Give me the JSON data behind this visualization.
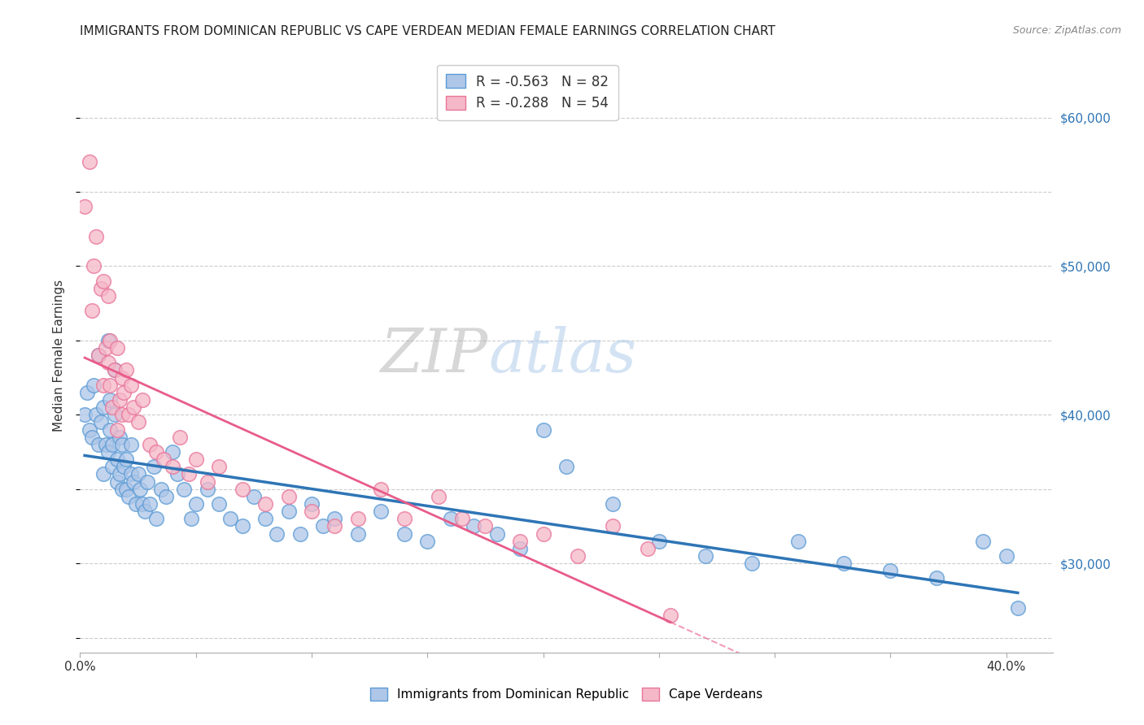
{
  "title": "IMMIGRANTS FROM DOMINICAN REPUBLIC VS CAPE VERDEAN MEDIAN FEMALE EARNINGS CORRELATION CHART",
  "source": "Source: ZipAtlas.com",
  "ylabel": "Median Female Earnings",
  "xlim": [
    0.0,
    0.42
  ],
  "ylim": [
    24000,
    64000
  ],
  "xticks": [
    0.0,
    0.05,
    0.1,
    0.15,
    0.2,
    0.25,
    0.3,
    0.35,
    0.4
  ],
  "ytick_labels_right": [
    "$30,000",
    "$40,000",
    "$50,000",
    "$60,000"
  ],
  "ytick_values_right": [
    30000,
    40000,
    50000,
    60000
  ],
  "blue_color": "#aec6e8",
  "blue_edge_color": "#5b9bd5",
  "blue_line_color": "#2e75b6",
  "pink_color": "#f5b8c8",
  "pink_edge_color": "#e8759a",
  "pink_line_color": "#e85c8a",
  "background_color": "#ffffff",
  "grid_color": "#cccccc",
  "blue_scatter_x": [
    0.002,
    0.003,
    0.004,
    0.005,
    0.006,
    0.007,
    0.008,
    0.008,
    0.009,
    0.01,
    0.01,
    0.011,
    0.012,
    0.012,
    0.013,
    0.013,
    0.014,
    0.014,
    0.015,
    0.015,
    0.016,
    0.016,
    0.017,
    0.017,
    0.018,
    0.018,
    0.019,
    0.02,
    0.02,
    0.021,
    0.022,
    0.022,
    0.023,
    0.024,
    0.025,
    0.026,
    0.027,
    0.028,
    0.029,
    0.03,
    0.032,
    0.033,
    0.035,
    0.037,
    0.04,
    0.042,
    0.045,
    0.048,
    0.05,
    0.055,
    0.06,
    0.065,
    0.07,
    0.075,
    0.08,
    0.085,
    0.09,
    0.095,
    0.1,
    0.105,
    0.11,
    0.12,
    0.13,
    0.14,
    0.15,
    0.16,
    0.17,
    0.18,
    0.19,
    0.2,
    0.21,
    0.23,
    0.25,
    0.27,
    0.29,
    0.31,
    0.33,
    0.35,
    0.37,
    0.39,
    0.4,
    0.405
  ],
  "blue_scatter_y": [
    40000,
    41500,
    39000,
    38500,
    42000,
    40000,
    38000,
    44000,
    39500,
    40500,
    36000,
    38000,
    37500,
    45000,
    41000,
    39000,
    38000,
    36500,
    43000,
    40000,
    37000,
    35500,
    38500,
    36000,
    35000,
    38000,
    36500,
    37000,
    35000,
    34500,
    38000,
    36000,
    35500,
    34000,
    36000,
    35000,
    34000,
    33500,
    35500,
    34000,
    36500,
    33000,
    35000,
    34500,
    37500,
    36000,
    35000,
    33000,
    34000,
    35000,
    34000,
    33000,
    32500,
    34500,
    33000,
    32000,
    33500,
    32000,
    34000,
    32500,
    33000,
    32000,
    33500,
    32000,
    31500,
    33000,
    32500,
    32000,
    31000,
    39000,
    36500,
    34000,
    31500,
    30500,
    30000,
    31500,
    30000,
    29500,
    29000,
    31500,
    30500,
    27000
  ],
  "pink_scatter_x": [
    0.002,
    0.004,
    0.005,
    0.006,
    0.007,
    0.008,
    0.009,
    0.01,
    0.01,
    0.011,
    0.012,
    0.012,
    0.013,
    0.013,
    0.014,
    0.015,
    0.016,
    0.016,
    0.017,
    0.018,
    0.018,
    0.019,
    0.02,
    0.021,
    0.022,
    0.023,
    0.025,
    0.027,
    0.03,
    0.033,
    0.036,
    0.04,
    0.043,
    0.047,
    0.05,
    0.055,
    0.06,
    0.07,
    0.08,
    0.09,
    0.1,
    0.11,
    0.12,
    0.13,
    0.14,
    0.155,
    0.165,
    0.175,
    0.19,
    0.2,
    0.215,
    0.23,
    0.245,
    0.255
  ],
  "pink_scatter_y": [
    54000,
    57000,
    47000,
    50000,
    52000,
    44000,
    48500,
    42000,
    49000,
    44500,
    43500,
    48000,
    42000,
    45000,
    40500,
    43000,
    44500,
    39000,
    41000,
    42500,
    40000,
    41500,
    43000,
    40000,
    42000,
    40500,
    39500,
    41000,
    38000,
    37500,
    37000,
    36500,
    38500,
    36000,
    37000,
    35500,
    36500,
    35000,
    34000,
    34500,
    33500,
    32500,
    33000,
    35000,
    33000,
    34500,
    33000,
    32500,
    31500,
    32000,
    30500,
    32500,
    31000,
    26500
  ]
}
